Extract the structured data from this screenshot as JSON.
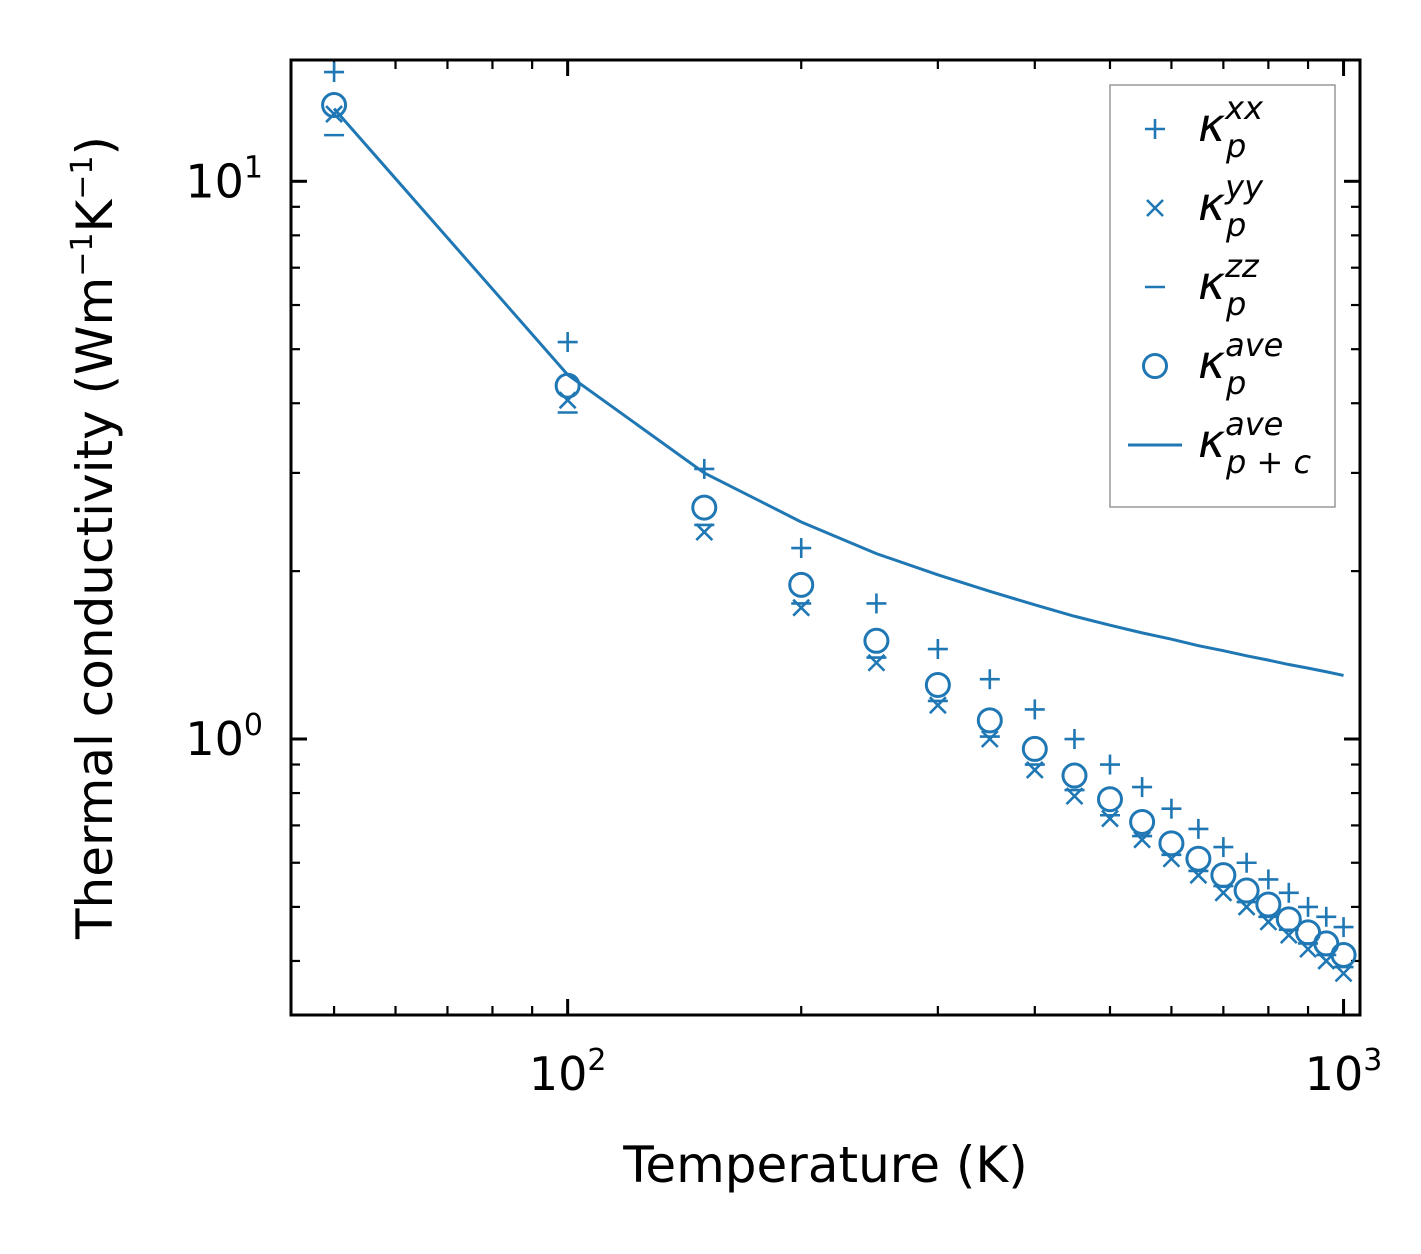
{
  "chart_data": {
    "type": "scatter",
    "xscale": "log",
    "yscale": "log",
    "xlim": [
      44,
      1050
    ],
    "ylim": [
      0.32,
      16.5
    ],
    "xlabel": "Temperature (K)",
    "ylabel_main": "Thermal conductivity (Wm",
    "ylabel_sup1": "−1",
    "ylabel_mid": "K",
    "ylabel_sup2": "−1",
    "ylabel_end": ")",
    "x_ticks": [
      {
        "value": 100,
        "base": "10",
        "exp": "2"
      },
      {
        "value": 1000,
        "base": "10",
        "exp": "3"
      }
    ],
    "y_ticks": [
      {
        "value": 1,
        "base": "10",
        "exp": "0"
      },
      {
        "value": 10,
        "base": "10",
        "exp": "1"
      }
    ],
    "color": "#1f77b4",
    "x": [
      50,
      100,
      150,
      200,
      250,
      300,
      350,
      400,
      450,
      500,
      550,
      600,
      650,
      700,
      750,
      800,
      850,
      900,
      950,
      1000
    ],
    "series": [
      {
        "name": "kappa_p_xx",
        "marker": "plus",
        "values": [
          15.7,
          5.15,
          3.05,
          2.2,
          1.75,
          1.45,
          1.28,
          1.13,
          1.0,
          0.9,
          0.82,
          0.75,
          0.69,
          0.64,
          0.6,
          0.56,
          0.53,
          0.5,
          0.48,
          0.46
        ]
      },
      {
        "name": "kappa_p_yy",
        "marker": "x",
        "values": [
          13.2,
          4.05,
          2.35,
          1.72,
          1.37,
          1.15,
          1.0,
          0.88,
          0.79,
          0.72,
          0.66,
          0.61,
          0.57,
          0.53,
          0.5,
          0.47,
          0.445,
          0.42,
          0.4,
          0.38
        ]
      },
      {
        "name": "kappa_p_zz",
        "marker": "minus",
        "values": [
          12.1,
          3.85,
          2.42,
          1.75,
          1.4,
          1.17,
          1.01,
          0.9,
          0.81,
          0.73,
          0.67,
          0.62,
          0.58,
          0.545,
          0.51,
          0.48,
          0.455,
          0.43,
          0.41,
          0.39
        ]
      },
      {
        "name": "kappa_p_ave",
        "marker": "circle",
        "values": [
          13.7,
          4.3,
          2.6,
          1.89,
          1.5,
          1.25,
          1.08,
          0.96,
          0.86,
          0.78,
          0.71,
          0.65,
          0.61,
          0.57,
          0.535,
          0.505,
          0.475,
          0.45,
          0.43,
          0.41
        ]
      },
      {
        "name": "kappa_p+c_ave",
        "marker": "line",
        "values": [
          13.5,
          4.5,
          3.0,
          2.45,
          2.15,
          1.97,
          1.84,
          1.74,
          1.66,
          1.6,
          1.55,
          1.51,
          1.47,
          1.44,
          1.41,
          1.385,
          1.36,
          1.34,
          1.32,
          1.3
        ]
      }
    ],
    "legend": {
      "position": "top-right",
      "entries": [
        {
          "symbol": "plus",
          "base": "κ",
          "sup": "xx",
          "sub": "p"
        },
        {
          "symbol": "x",
          "base": "κ",
          "sup": "yy",
          "sub": "p"
        },
        {
          "symbol": "minus",
          "base": "κ",
          "sup": "zz",
          "sub": "p"
        },
        {
          "symbol": "circle",
          "base": "κ",
          "sup": "ave",
          "sub": "p"
        },
        {
          "symbol": "line",
          "base": "κ",
          "sup": "ave",
          "sub": "p + c"
        }
      ]
    }
  }
}
